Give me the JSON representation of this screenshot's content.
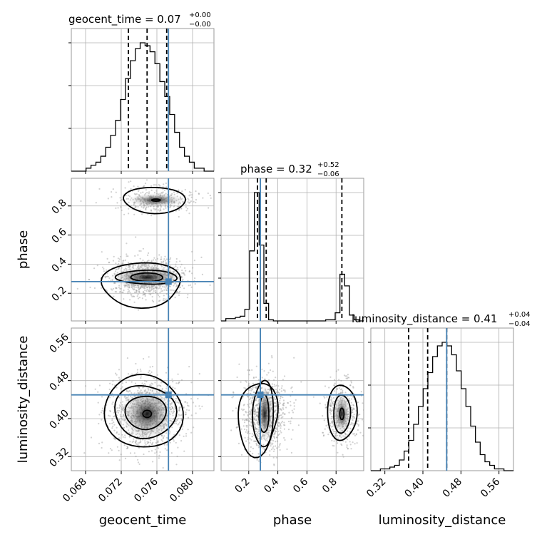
{
  "chart_data": {
    "type": "corner",
    "parameters": [
      "geocent_time",
      "phase",
      "luminosity_distance"
    ],
    "truths": {
      "geocent_time": 0.0773,
      "phase": 0.28,
      "luminosity_distance": 0.45
    },
    "colors": {
      "truth": "#4682b4",
      "hist": "#000000",
      "grid": "#b0b0b0"
    },
    "titles": {
      "geocent_time": {
        "prefix": "geocent_time = ",
        "value": "0.07",
        "upper": "+0.00",
        "lower": "−0.00"
      },
      "phase": {
        "prefix": "phase = ",
        "value": "0.32",
        "upper": "+0.52",
        "lower": "−0.06"
      },
      "luminosity_distance": {
        "prefix": "luminosity_distance = ",
        "value": "0.41",
        "upper": "+0.04",
        "lower": "−0.04"
      }
    },
    "ranges": {
      "geocent_time": [
        0.0664,
        0.0824
      ],
      "phase": [
        0.01,
        0.99
      ],
      "luminosity_distance": [
        0.2905,
        0.5905
      ]
    },
    "ticks": {
      "geocent_time": [
        "0.068",
        "0.072",
        "0.076",
        "0.080"
      ],
      "phase": [
        "0.2",
        "0.4",
        "0.6",
        "0.8"
      ],
      "luminosity_distance": [
        "0.32",
        "0.40",
        "0.48",
        "0.56"
      ]
    },
    "quantiles": {
      "geocent_time": [
        0.0728,
        0.0749,
        0.0771
      ],
      "phase": [
        0.26,
        0.32,
        0.84
      ],
      "luminosity_distance": [
        0.37,
        0.41,
        0.45
      ]
    },
    "histograms": {
      "geocent_time": [
        0,
        0,
        0,
        1,
        2,
        3,
        5,
        8,
        12,
        17,
        24,
        31,
        37,
        41,
        43,
        42,
        40,
        36,
        30,
        25,
        19,
        13,
        8,
        5,
        3,
        1,
        1,
        0,
        0
      ],
      "phase": [
        0,
        2,
        2,
        3,
        4,
        10,
        60,
        110,
        65,
        15,
        1,
        0,
        0,
        0,
        0,
        0,
        0,
        0,
        0,
        0,
        0,
        0,
        1,
        1,
        7,
        40,
        30,
        5,
        1,
        0
      ],
      "luminosity_distance": [
        0,
        0,
        1,
        1,
        2,
        3,
        6,
        11,
        17,
        26,
        36,
        46,
        55,
        64,
        70,
        72,
        70,
        65,
        56,
        46,
        36,
        25,
        16,
        9,
        5,
        3,
        1,
        1,
        0,
        0
      ]
    },
    "axis_labels": {
      "x": [
        "geocent_time",
        "phase",
        "luminosity_distance"
      ],
      "y": [
        "phase",
        "luminosity_distance"
      ]
    },
    "grid": true
  }
}
